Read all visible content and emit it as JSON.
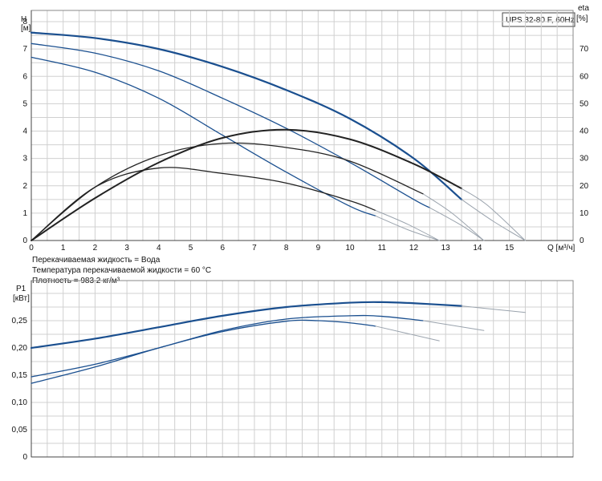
{
  "title": "UPS 32-80 F, 60Hz",
  "info_lines": [
    "Перекачиваемая жидкость = Вода",
    "Температура перекачиваемой жидкости = 60 °C",
    "Плотность = 983.2 кг/м³"
  ],
  "colors": {
    "blue": "#1a4f8f",
    "black": "#222222",
    "grey": "#9aa3ad",
    "grid": "#d0d0d0"
  },
  "chart_data": [
    {
      "type": "line",
      "name": "head-efficiency",
      "xlabel": "Q [м³/ч]",
      "ylabel": "H",
      "ylabel_unit": "[м]",
      "y2label": "eta",
      "y2label_unit": "[%]",
      "xlim": [
        0,
        17
      ],
      "ylim": [
        0,
        8.0
      ],
      "y2lim": [
        0,
        80
      ],
      "xticks": [
        0,
        1,
        2,
        3,
        4,
        5,
        6,
        7,
        8,
        9,
        10,
        11,
        12,
        13,
        14,
        15
      ],
      "yticks": [
        0,
        1,
        2,
        3,
        4,
        5,
        6,
        7,
        8
      ],
      "y2ticks": [
        0,
        10,
        20,
        30,
        40,
        50,
        60,
        70
      ],
      "grid": true,
      "series": [
        {
          "kind": "head",
          "axis": "left",
          "color": "#1a4f8f",
          "width": 2.2,
          "solid_until": 13.5,
          "x": [
            0,
            2,
            4,
            6,
            8,
            10,
            12,
            13.5,
            14.5,
            15.5
          ],
          "y": [
            7.6,
            7.4,
            7.0,
            6.35,
            5.5,
            4.45,
            3.0,
            1.5,
            0.7,
            0
          ]
        },
        {
          "kind": "head",
          "axis": "left",
          "color": "#1a4f8f",
          "width": 1.3,
          "solid_until": 12.5,
          "x": [
            0,
            2,
            4,
            6,
            8,
            10,
            12,
            12.5,
            13.5,
            14.2
          ],
          "y": [
            7.2,
            6.85,
            6.2,
            5.2,
            4.1,
            2.85,
            1.5,
            1.2,
            0.55,
            0
          ]
        },
        {
          "kind": "head",
          "axis": "left",
          "color": "#1a4f8f",
          "width": 1.3,
          "solid_until": 10.8,
          "x": [
            0,
            2,
            4,
            6,
            8,
            10,
            10.8,
            11.8,
            12.8
          ],
          "y": [
            6.7,
            6.15,
            5.2,
            3.85,
            2.5,
            1.25,
            0.9,
            0.4,
            0
          ]
        },
        {
          "kind": "efficiency",
          "axis": "right",
          "color": "#222222",
          "width": 2.0,
          "solid_until": 13.5,
          "x": [
            0,
            2,
            4,
            6,
            8,
            10,
            12,
            13.5,
            14.3,
            15.5
          ],
          "y": [
            0,
            15.5,
            28.5,
            37.5,
            40.5,
            37,
            28,
            19,
            13,
            0
          ]
        },
        {
          "kind": "efficiency",
          "axis": "right",
          "color": "#222222",
          "width": 1.3,
          "solid_until": 12.3,
          "x": [
            0,
            2,
            4,
            6,
            8,
            10,
            12.3,
            13.2,
            14.2
          ],
          "y": [
            0,
            19.5,
            31,
            35.5,
            34,
            29,
            17,
            10,
            0
          ]
        },
        {
          "kind": "efficiency",
          "axis": "right",
          "color": "#222222",
          "width": 1.3,
          "solid_until": 10.8,
          "x": [
            0,
            2,
            4,
            6,
            8,
            10,
            10.8,
            11.8,
            12.8
          ],
          "y": [
            0,
            19.5,
            26.5,
            24.5,
            21,
            14.5,
            11,
            6,
            0
          ]
        }
      ]
    },
    {
      "type": "line",
      "name": "power",
      "ylabel": "P1",
      "ylabel_unit": "[кВт]",
      "xlim": [
        0,
        17
      ],
      "ylim": [
        0,
        0.3
      ],
      "yticks": [
        0,
        0.05,
        0.1,
        0.15,
        0.2,
        0.25
      ],
      "ytick_labels": [
        "0",
        "0,05",
        "0,10",
        "0,15",
        "0,20",
        "0,25"
      ],
      "grid": true,
      "series": [
        {
          "color": "#1a4f8f",
          "width": 2.2,
          "solid_until": 13.5,
          "x": [
            0,
            2,
            4,
            6,
            8,
            10,
            11,
            12,
            13.5,
            15.5
          ],
          "y": [
            0.2,
            0.217,
            0.238,
            0.259,
            0.275,
            0.283,
            0.284,
            0.282,
            0.277,
            0.265
          ]
        },
        {
          "color": "#1a4f8f",
          "width": 1.3,
          "solid_until": 12.3,
          "x": [
            0,
            2,
            4,
            6,
            8,
            10,
            11,
            12.3,
            14.2
          ],
          "y": [
            0.147,
            0.17,
            0.2,
            0.232,
            0.253,
            0.259,
            0.258,
            0.25,
            0.232
          ]
        },
        {
          "color": "#1a4f8f",
          "width": 1.3,
          "solid_until": 10.8,
          "x": [
            0,
            2,
            4,
            6,
            8,
            9,
            10,
            10.8,
            12.8
          ],
          "y": [
            0.135,
            0.165,
            0.2,
            0.23,
            0.249,
            0.25,
            0.246,
            0.24,
            0.213
          ]
        }
      ]
    }
  ]
}
